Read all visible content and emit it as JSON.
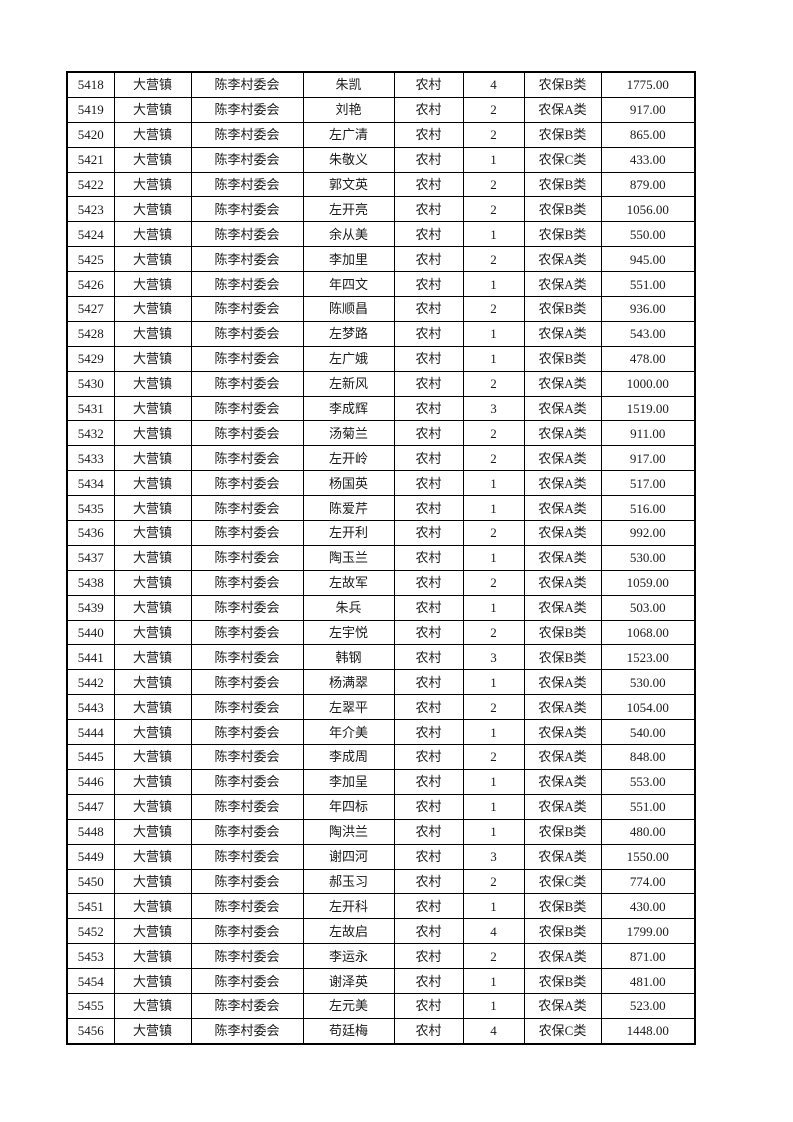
{
  "page": {
    "background_color": "#ffffff",
    "border_color": "#000000",
    "text_color": "#1a1a1a"
  },
  "table": {
    "columns": [
      "serial-number",
      "town",
      "village-committee",
      "name",
      "household-type",
      "person-count",
      "insurance-category",
      "amount"
    ],
    "rows": [
      [
        "5418",
        "大营镇",
        "陈李村委会",
        "朱凯",
        "农村",
        "4",
        "农保B类",
        "1775.00"
      ],
      [
        "5419",
        "大营镇",
        "陈李村委会",
        "刘艳",
        "农村",
        "2",
        "农保A类",
        "917.00"
      ],
      [
        "5420",
        "大营镇",
        "陈李村委会",
        "左广清",
        "农村",
        "2",
        "农保B类",
        "865.00"
      ],
      [
        "5421",
        "大营镇",
        "陈李村委会",
        "朱敬义",
        "农村",
        "1",
        "农保C类",
        "433.00"
      ],
      [
        "5422",
        "大营镇",
        "陈李村委会",
        "郭文英",
        "农村",
        "2",
        "农保B类",
        "879.00"
      ],
      [
        "5423",
        "大营镇",
        "陈李村委会",
        "左开亮",
        "农村",
        "2",
        "农保B类",
        "1056.00"
      ],
      [
        "5424",
        "大营镇",
        "陈李村委会",
        "余从美",
        "农村",
        "1",
        "农保B类",
        "550.00"
      ],
      [
        "5425",
        "大营镇",
        "陈李村委会",
        "李加里",
        "农村",
        "2",
        "农保A类",
        "945.00"
      ],
      [
        "5426",
        "大营镇",
        "陈李村委会",
        "年四文",
        "农村",
        "1",
        "农保A类",
        "551.00"
      ],
      [
        "5427",
        "大营镇",
        "陈李村委会",
        "陈顺昌",
        "农村",
        "2",
        "农保B类",
        "936.00"
      ],
      [
        "5428",
        "大营镇",
        "陈李村委会",
        "左梦路",
        "农村",
        "1",
        "农保A类",
        "543.00"
      ],
      [
        "5429",
        "大营镇",
        "陈李村委会",
        "左广娥",
        "农村",
        "1",
        "农保B类",
        "478.00"
      ],
      [
        "5430",
        "大营镇",
        "陈李村委会",
        "左新风",
        "农村",
        "2",
        "农保A类",
        "1000.00"
      ],
      [
        "5431",
        "大营镇",
        "陈李村委会",
        "李成辉",
        "农村",
        "3",
        "农保A类",
        "1519.00"
      ],
      [
        "5432",
        "大营镇",
        "陈李村委会",
        "汤菊兰",
        "农村",
        "2",
        "农保A类",
        "911.00"
      ],
      [
        "5433",
        "大营镇",
        "陈李村委会",
        "左开岭",
        "农村",
        "2",
        "农保A类",
        "917.00"
      ],
      [
        "5434",
        "大营镇",
        "陈李村委会",
        "杨国英",
        "农村",
        "1",
        "农保A类",
        "517.00"
      ],
      [
        "5435",
        "大营镇",
        "陈李村委会",
        "陈爱芹",
        "农村",
        "1",
        "农保A类",
        "516.00"
      ],
      [
        "5436",
        "大营镇",
        "陈李村委会",
        "左开利",
        "农村",
        "2",
        "农保A类",
        "992.00"
      ],
      [
        "5437",
        "大营镇",
        "陈李村委会",
        "陶玉兰",
        "农村",
        "1",
        "农保A类",
        "530.00"
      ],
      [
        "5438",
        "大营镇",
        "陈李村委会",
        "左故军",
        "农村",
        "2",
        "农保A类",
        "1059.00"
      ],
      [
        "5439",
        "大营镇",
        "陈李村委会",
        "朱兵",
        "农村",
        "1",
        "农保A类",
        "503.00"
      ],
      [
        "5440",
        "大营镇",
        "陈李村委会",
        "左宇悦",
        "农村",
        "2",
        "农保B类",
        "1068.00"
      ],
      [
        "5441",
        "大营镇",
        "陈李村委会",
        "韩钢",
        "农村",
        "3",
        "农保B类",
        "1523.00"
      ],
      [
        "5442",
        "大营镇",
        "陈李村委会",
        "杨满翠",
        "农村",
        "1",
        "农保A类",
        "530.00"
      ],
      [
        "5443",
        "大营镇",
        "陈李村委会",
        "左翠平",
        "农村",
        "2",
        "农保A类",
        "1054.00"
      ],
      [
        "5444",
        "大营镇",
        "陈李村委会",
        "年介美",
        "农村",
        "1",
        "农保A类",
        "540.00"
      ],
      [
        "5445",
        "大营镇",
        "陈李村委会",
        "李成周",
        "农村",
        "2",
        "农保A类",
        "848.00"
      ],
      [
        "5446",
        "大营镇",
        "陈李村委会",
        "李加呈",
        "农村",
        "1",
        "农保A类",
        "553.00"
      ],
      [
        "5447",
        "大营镇",
        "陈李村委会",
        "年四标",
        "农村",
        "1",
        "农保A类",
        "551.00"
      ],
      [
        "5448",
        "大营镇",
        "陈李村委会",
        "陶洪兰",
        "农村",
        "1",
        "农保B类",
        "480.00"
      ],
      [
        "5449",
        "大营镇",
        "陈李村委会",
        "谢四河",
        "农村",
        "3",
        "农保A类",
        "1550.00"
      ],
      [
        "5450",
        "大营镇",
        "陈李村委会",
        "郝玉习",
        "农村",
        "2",
        "农保C类",
        "774.00"
      ],
      [
        "5451",
        "大营镇",
        "陈李村委会",
        "左开科",
        "农村",
        "1",
        "农保B类",
        "430.00"
      ],
      [
        "5452",
        "大营镇",
        "陈李村委会",
        "左故启",
        "农村",
        "4",
        "农保B类",
        "1799.00"
      ],
      [
        "5453",
        "大营镇",
        "陈李村委会",
        "李运永",
        "农村",
        "2",
        "农保A类",
        "871.00"
      ],
      [
        "5454",
        "大营镇",
        "陈李村委会",
        "谢泽英",
        "农村",
        "1",
        "农保B类",
        "481.00"
      ],
      [
        "5455",
        "大营镇",
        "陈李村委会",
        "左元美",
        "农村",
        "1",
        "农保A类",
        "523.00"
      ],
      [
        "5456",
        "大营镇",
        "陈李村委会",
        "苟廷梅",
        "农村",
        "4",
        "农保C类",
        "1448.00"
      ]
    ]
  }
}
